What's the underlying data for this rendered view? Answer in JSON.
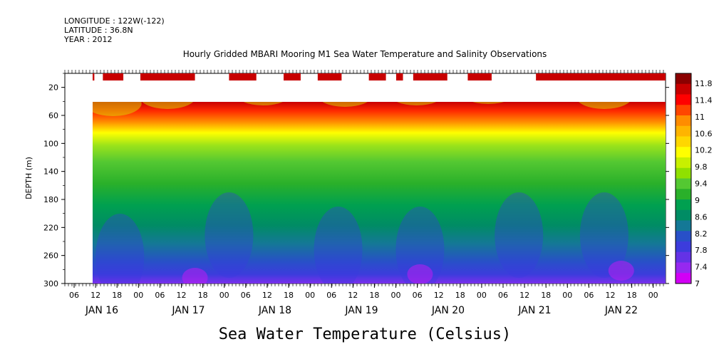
{
  "header": {
    "longitude": "LONGITUDE : 122W(-122)",
    "latitude": "LATITUDE : 36.8N",
    "year": "YEAR : 2012"
  },
  "chart_data": {
    "type": "heatmap",
    "title": "Hourly Gridded MBARI Mooring M1 Sea Water Temperature and Salinity Observations",
    "xlabel": "Sea Water Temperature (Celsius)",
    "ylabel": "DEPTH (m)",
    "x_range_hours": [
      0,
      168
    ],
    "x_ticks_hour_labels": [
      "06",
      "12",
      "18",
      "00",
      "06",
      "12",
      "18",
      "00",
      "06",
      "12",
      "18",
      "00",
      "06",
      "12",
      "18",
      "00",
      "06",
      "12",
      "18",
      "00",
      "06",
      "12",
      "18",
      "00",
      "06",
      "12",
      "18",
      "00"
    ],
    "day_labels": [
      "JAN 16",
      "JAN 17",
      "JAN 18",
      "JAN 19",
      "JAN 20",
      "JAN 21",
      "JAN 22"
    ],
    "y_ticks": [
      "20",
      "60",
      "100",
      "140",
      "180",
      "220",
      "260",
      "300"
    ],
    "ylim": [
      300,
      0
    ],
    "colorbar": {
      "levels": [
        "11.8",
        "11.4",
        "11",
        "10.6",
        "10.2",
        "9.8",
        "9.4",
        "9",
        "8.6",
        "8.2",
        "7.8",
        "7.4",
        "7"
      ],
      "colors": [
        "#8b0000",
        "#c80000",
        "#ff0000",
        "#ff4500",
        "#ff8c00",
        "#ffb400",
        "#ffd700",
        "#ffff00",
        "#c8f000",
        "#90e000",
        "#54c832",
        "#2ab02a",
        "#00a050",
        "#008c64",
        "#147896",
        "#2850c8",
        "#3c3cdc",
        "#6432e6",
        "#9628f0",
        "#d200f5"
      ]
    },
    "surface_band": {
      "color": "#c80000",
      "segments_hours": [
        [
          0,
          0.5
        ],
        [
          3,
          9
        ],
        [
          14,
          30
        ],
        [
          40,
          48
        ],
        [
          56,
          61
        ],
        [
          66,
          73
        ],
        [
          81,
          86
        ],
        [
          89,
          91
        ],
        [
          94,
          104
        ],
        [
          110,
          117
        ],
        [
          130,
          168
        ]
      ]
    },
    "data_region": {
      "start_hour": 0,
      "top_depth_m": 40,
      "bottom_depth_m": 300
    }
  }
}
